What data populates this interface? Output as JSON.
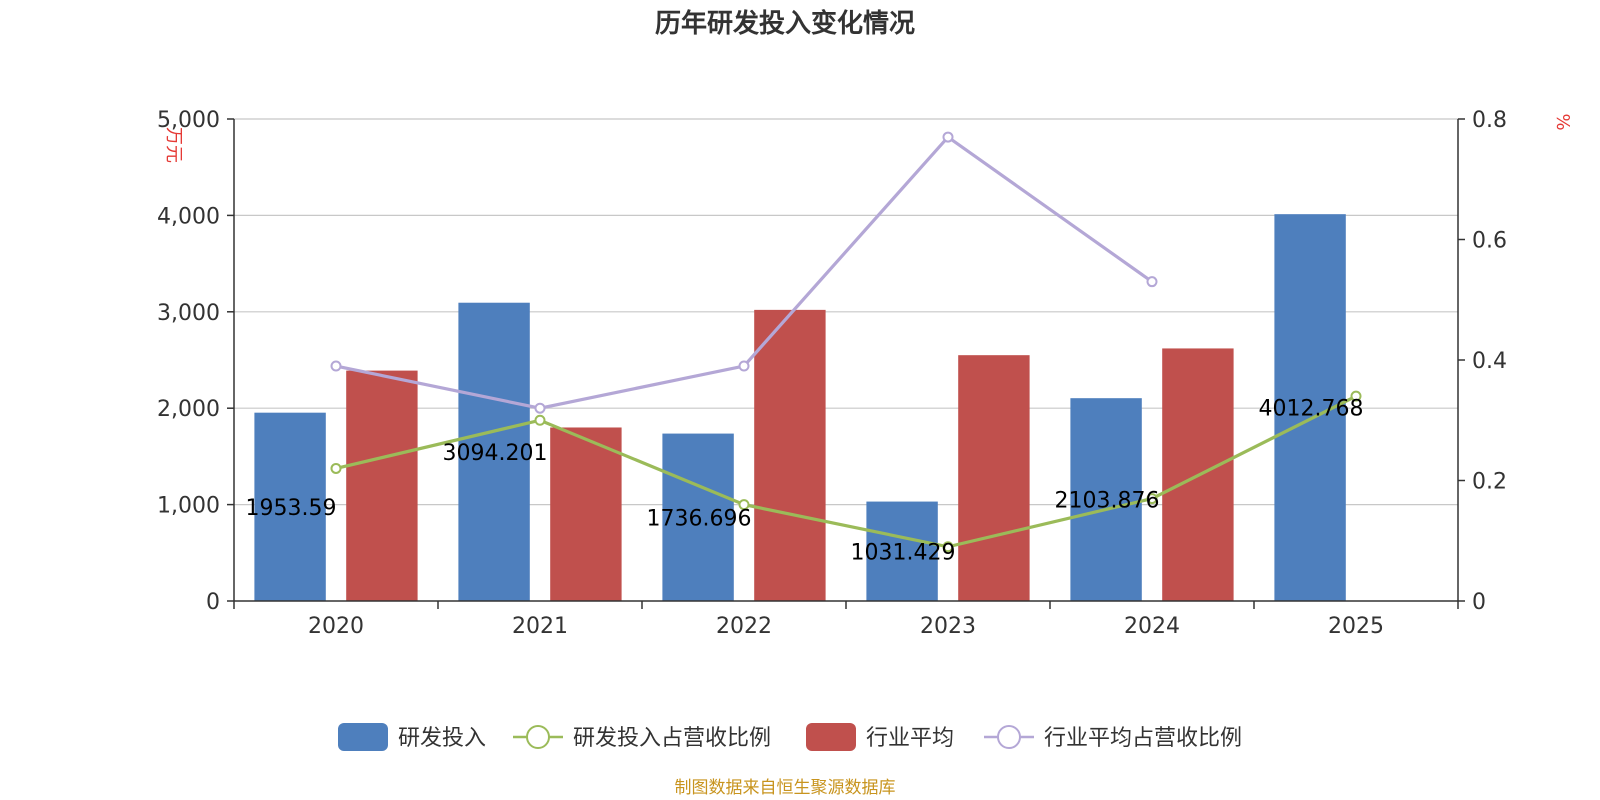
{
  "chart_data": {
    "type": "bar",
    "title": "历年研发投入变化情况",
    "categories": [
      "2020",
      "2021",
      "2022",
      "2023",
      "2024",
      "2025"
    ],
    "y_left": {
      "unit": "万元",
      "ylim": [
        0,
        5000
      ],
      "ticks": [
        "0",
        "1,000",
        "2,000",
        "3,000",
        "4,000",
        "5,000"
      ]
    },
    "y_right": {
      "unit": "%",
      "ylim": [
        0,
        0.8
      ],
      "ticks": [
        "0",
        "0.2",
        "0.4",
        "0.6",
        "0.8"
      ]
    },
    "series": [
      {
        "name": "研发投入",
        "kind": "bar",
        "axis": "left",
        "color": "#4e7fbd",
        "values": [
          1953.59,
          3094.201,
          1736.696,
          1031.429,
          2103.876,
          4012.768
        ],
        "labels": [
          "1953.59",
          "3094.201",
          "1736.696",
          "1031.429",
          "2103.876",
          "4012.768"
        ]
      },
      {
        "name": "研发投入占营收比例",
        "kind": "line",
        "axis": "right",
        "color": "#9bbb59",
        "values": [
          0.22,
          0.3,
          0.16,
          0.09,
          0.17,
          0.34
        ]
      },
      {
        "name": "行业平均",
        "kind": "bar",
        "axis": "left",
        "color": "#c0504d",
        "values": [
          2390,
          1800,
          3020,
          2550,
          2620,
          null
        ]
      },
      {
        "name": "行业平均占营收比例",
        "kind": "line",
        "axis": "right",
        "color": "#b4a7d6",
        "values": [
          0.39,
          0.32,
          0.39,
          0.77,
          0.53,
          null
        ]
      }
    ],
    "grid": true,
    "legend": "bottom-center"
  },
  "source_note": "制图数据来自恒生聚源数据库"
}
